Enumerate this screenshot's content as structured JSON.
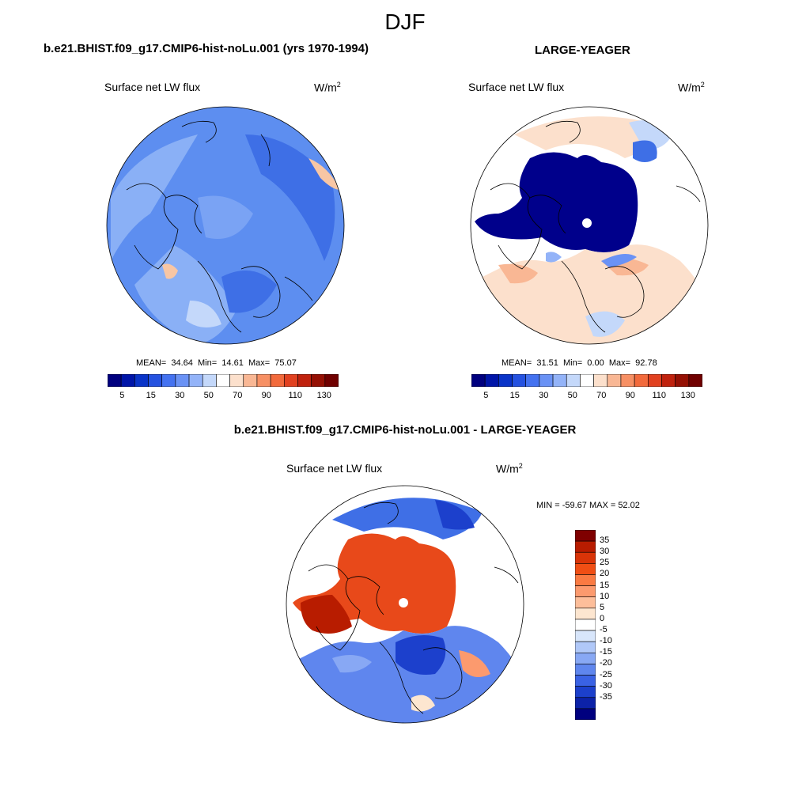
{
  "figure": {
    "title": "DJF"
  },
  "panels": [
    {
      "title": "b.e21.BHIST.f09_g17.CMIP6-hist-noLu.001 (yrs 1970-1994)",
      "variable": "Surface net LW flux",
      "units": "W/m",
      "units_sup": "2",
      "stats": {
        "mean_label": "MEAN=",
        "mean": "34.64",
        "min_label": "Min=",
        "min": "14.61",
        "max_label": "Max=",
        "max": "75.07"
      }
    },
    {
      "title": "LARGE-YEAGER",
      "variable": "Surface net LW flux",
      "units": "W/m",
      "units_sup": "2",
      "stats": {
        "mean_label": "MEAN=",
        "mean": "31.51",
        "min_label": "Min=",
        "min": "0.00",
        "max_label": "Max=",
        "max": "92.78"
      }
    }
  ],
  "diff": {
    "title": "b.e21.BHIST.f09_g17.CMIP6-hist-noLu.001 - LARGE-YEAGER",
    "variable": "Surface net LW flux",
    "units": "W/m",
    "units_sup": "2",
    "stats": "MIN = -59.67 MAX =  52.02"
  },
  "colorbar_main": {
    "colors": [
      "#00007f",
      "#0015a8",
      "#0a34c8",
      "#2552e0",
      "#4472f0",
      "#6a92f5",
      "#93b3f8",
      "#c4d8fa",
      "#ffffff",
      "#fce0cc",
      "#f9b794",
      "#f79064",
      "#f26a3c",
      "#e14120",
      "#c0220e",
      "#951004",
      "#700000"
    ],
    "tick_labels": [
      "5",
      "15",
      "30",
      "50",
      "70",
      "90",
      "110",
      "130"
    ]
  },
  "colorbar_diff": {
    "colors": [
      "#7f0000",
      "#b81c00",
      "#d93408",
      "#f04e14",
      "#fa7a42",
      "#fc9a6e",
      "#fdbe9a",
      "#fde6d0",
      "#ffffff",
      "#d8e6fb",
      "#b0c8f8",
      "#88a8f4",
      "#5f86ee",
      "#3a62e4",
      "#1c40cc",
      "#0c22a8",
      "#00007f"
    ],
    "tick_labels": [
      "35",
      "30",
      "25",
      "20",
      "15",
      "10",
      "5",
      "0",
      "-5",
      "-10",
      "-15",
      "-20",
      "-25",
      "-30",
      "-35"
    ]
  },
  "colors": {
    "ocean_ctrl": "#5d8ef0",
    "ocean_ctrl_light": "#8ab0f6",
    "ocean_ctrl_dark": "#3e6fe6",
    "arctic_deep": "#00008b",
    "diff_warm": "#e8491a",
    "diff_cool": "#3f6fe6",
    "land_outline": "#000000"
  }
}
